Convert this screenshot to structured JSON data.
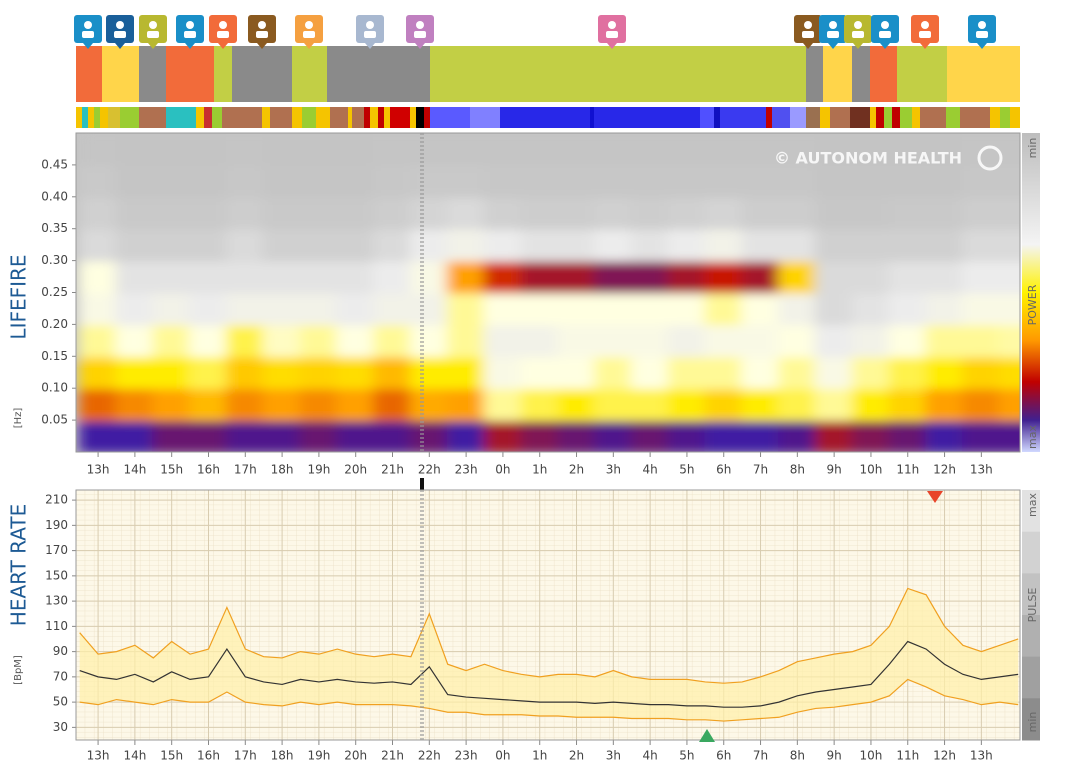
{
  "chart_data": [
    {
      "type": "heatmap",
      "ylabel": "LIFEFIRE",
      "yunit": "[Hz]",
      "watermark": "© AUTONOM HEALTH",
      "scale_labels": [
        "min",
        "POWER",
        "max"
      ],
      "xlim": [
        12.4,
        38.05
      ],
      "ylim": [
        0,
        0.5
      ],
      "xticks": [
        {
          "value": 13,
          "label": "13h"
        },
        {
          "value": 14,
          "label": "14h"
        },
        {
          "value": 15,
          "label": "15h"
        },
        {
          "value": 16,
          "label": "16h"
        },
        {
          "value": 17,
          "label": "17h"
        },
        {
          "value": 18,
          "label": "18h"
        },
        {
          "value": 19,
          "label": "19h"
        },
        {
          "value": 20,
          "label": "20h"
        },
        {
          "value": 21,
          "label": "21h"
        },
        {
          "value": 22,
          "label": "22h"
        },
        {
          "value": 23,
          "label": "23h"
        },
        {
          "value": 24,
          "label": "0h"
        },
        {
          "value": 25,
          "label": "1h"
        },
        {
          "value": 26,
          "label": "2h"
        },
        {
          "value": 27,
          "label": "3h"
        },
        {
          "value": 28,
          "label": "4h"
        },
        {
          "value": 29,
          "label": "5h"
        },
        {
          "value": 30,
          "label": "6h"
        },
        {
          "value": 31,
          "label": "7h"
        },
        {
          "value": 32,
          "label": "8h"
        },
        {
          "value": 33,
          "label": "9h"
        },
        {
          "value": 34,
          "label": "10h"
        },
        {
          "value": 35,
          "label": "11h"
        },
        {
          "value": 36,
          "label": "12h"
        },
        {
          "value": 37,
          "label": "13h"
        }
      ],
      "yticks": [
        0.05,
        {
          "value": 0.1,
          "label": "0.10"
        },
        0.15,
        {
          "value": 0.2,
          "label": "0.20"
        },
        0.25,
        {
          "value": 0.3,
          "label": "0.30"
        },
        0.35,
        {
          "value": 0.4,
          "label": "0.40"
        },
        0.45
      ],
      "x": [
        13,
        14,
        15,
        16,
        17,
        18,
        19,
        20,
        21,
        22,
        23,
        24,
        25,
        26,
        27,
        28,
        29,
        30,
        31,
        32,
        33,
        34,
        35,
        36,
        37,
        38
      ],
      "y": [
        0.025,
        0.075,
        0.125,
        0.175,
        0.225,
        0.275,
        0.325,
        0.375,
        0.425,
        0.475
      ],
      "values": [
        [
          95,
          95,
          90,
          90,
          92,
          92,
          90,
          92,
          92,
          90,
          95,
          85,
          88,
          90,
          92,
          90,
          92,
          95,
          95,
          92,
          85,
          88,
          90,
          95,
          92,
          92
        ],
        [
          75,
          72,
          70,
          65,
          72,
          70,
          72,
          70,
          75,
          68,
          70,
          45,
          50,
          55,
          50,
          50,
          55,
          60,
          55,
          50,
          45,
          55,
          60,
          70,
          72,
          70
        ],
        [
          60,
          55,
          55,
          50,
          62,
          58,
          60,
          58,
          65,
          55,
          55,
          35,
          40,
          40,
          45,
          40,
          45,
          45,
          40,
          45,
          35,
          45,
          50,
          55,
          60,
          58
        ],
        [
          45,
          40,
          45,
          40,
          50,
          42,
          45,
          40,
          45,
          40,
          45,
          30,
          30,
          35,
          35,
          35,
          30,
          35,
          35,
          40,
          25,
          30,
          40,
          45,
          45,
          44
        ],
        [
          35,
          25,
          30,
          25,
          30,
          30,
          30,
          25,
          30,
          30,
          45,
          40,
          40,
          40,
          40,
          40,
          40,
          45,
          40,
          30,
          15,
          20,
          25,
          30,
          35,
          35
        ],
        [
          40,
          20,
          20,
          20,
          20,
          20,
          20,
          20,
          25,
          35,
          70,
          80,
          85,
          85,
          88,
          88,
          85,
          82,
          85,
          60,
          15,
          15,
          20,
          20,
          25,
          25
        ],
        [
          15,
          10,
          10,
          10,
          15,
          10,
          10,
          10,
          15,
          25,
          30,
          25,
          20,
          20,
          25,
          20,
          25,
          30,
          20,
          20,
          10,
          10,
          10,
          10,
          15,
          15
        ],
        [
          10,
          6,
          6,
          6,
          8,
          6,
          6,
          6,
          8,
          12,
          15,
          10,
          8,
          8,
          10,
          8,
          10,
          12,
          8,
          8,
          5,
          5,
          6,
          6,
          8,
          8
        ],
        [
          6,
          4,
          4,
          4,
          5,
          4,
          4,
          4,
          5,
          6,
          6,
          5,
          5,
          5,
          5,
          5,
          5,
          5,
          5,
          5,
          4,
          4,
          4,
          4,
          5,
          5
        ],
        [
          4,
          3,
          3,
          3,
          4,
          3,
          3,
          3,
          4,
          4,
          4,
          4,
          4,
          4,
          4,
          4,
          4,
          4,
          4,
          4,
          3,
          3,
          3,
          3,
          4,
          4
        ]
      ]
    },
    {
      "type": "line",
      "ylabel": "HEART RATE",
      "yunit": "[BpM]",
      "scale_labels": [
        "max",
        "PULSE",
        "min"
      ],
      "xlim": [
        12.4,
        38.05
      ],
      "ylim": [
        20,
        218
      ],
      "xticks": [
        {
          "value": 13,
          "label": "13h"
        },
        {
          "value": 14,
          "label": "14h"
        },
        {
          "value": 15,
          "label": "15h"
        },
        {
          "value": 16,
          "label": "16h"
        },
        {
          "value": 17,
          "label": "17h"
        },
        {
          "value": 18,
          "label": "18h"
        },
        {
          "value": 19,
          "label": "19h"
        },
        {
          "value": 20,
          "label": "20h"
        },
        {
          "value": 21,
          "label": "21h"
        },
        {
          "value": 22,
          "label": "22h"
        },
        {
          "value": 23,
          "label": "23h"
        },
        {
          "value": 24,
          "label": "0h"
        },
        {
          "value": 25,
          "label": "1h"
        },
        {
          "value": 26,
          "label": "2h"
        },
        {
          "value": 27,
          "label": "3h"
        },
        {
          "value": 28,
          "label": "4h"
        },
        {
          "value": 29,
          "label": "5h"
        },
        {
          "value": 30,
          "label": "6h"
        },
        {
          "value": 31,
          "label": "7h"
        },
        {
          "value": 32,
          "label": "8h"
        },
        {
          "value": 33,
          "label": "9h"
        },
        {
          "value": 34,
          "label": "10h"
        },
        {
          "value": 35,
          "label": "11h"
        },
        {
          "value": 36,
          "label": "12h"
        },
        {
          "value": 37,
          "label": "13h"
        }
      ],
      "yticks": [
        30,
        50,
        70,
        90,
        110,
        130,
        150,
        170,
        190,
        210
      ],
      "grid": true,
      "x": [
        12.5,
        13,
        13.5,
        14,
        14.5,
        15,
        15.5,
        16,
        16.5,
        17,
        17.5,
        18,
        18.5,
        19,
        19.5,
        20,
        20.5,
        21,
        21.5,
        22,
        22.5,
        23,
        23.5,
        24,
        24.5,
        25,
        25.5,
        26,
        26.5,
        27,
        27.5,
        28,
        28.5,
        29,
        29.5,
        30,
        30.5,
        31,
        31.5,
        32,
        32.5,
        33,
        33.5,
        34,
        34.5,
        35,
        35.5,
        36,
        36.5,
        37,
        37.5,
        38
      ],
      "series": [
        {
          "color": "#333333",
          "values": [
            75,
            70,
            68,
            72,
            66,
            74,
            68,
            70,
            92,
            70,
            66,
            64,
            68,
            66,
            68,
            66,
            65,
            66,
            64,
            78,
            56,
            54,
            53,
            52,
            51,
            50,
            50,
            50,
            49,
            50,
            49,
            48,
            48,
            47,
            47,
            46,
            46,
            47,
            50,
            55,
            58,
            60,
            62,
            64,
            80,
            98,
            92,
            80,
            72,
            68,
            70,
            72
          ]
        },
        {
          "color": "#f0a020",
          "values": [
            105,
            88,
            90,
            95,
            85,
            98,
            88,
            92,
            125,
            92,
            86,
            85,
            90,
            88,
            92,
            88,
            86,
            88,
            86,
            120,
            80,
            75,
            80,
            75,
            72,
            70,
            72,
            72,
            70,
            75,
            70,
            68,
            68,
            68,
            66,
            65,
            66,
            70,
            75,
            82,
            85,
            88,
            90,
            95,
            110,
            140,
            135,
            110,
            95,
            90,
            95,
            100
          ]
        },
        {
          "color": "#f0a020",
          "values": [
            50,
            48,
            52,
            50,
            48,
            52,
            50,
            50,
            58,
            50,
            48,
            47,
            50,
            48,
            50,
            48,
            48,
            48,
            47,
            45,
            42,
            42,
            40,
            40,
            40,
            39,
            39,
            38,
            38,
            38,
            37,
            37,
            37,
            36,
            36,
            35,
            36,
            37,
            38,
            42,
            45,
            46,
            48,
            50,
            55,
            68,
            62,
            55,
            52,
            48,
            50,
            48
          ]
        }
      ]
    }
  ]
}
